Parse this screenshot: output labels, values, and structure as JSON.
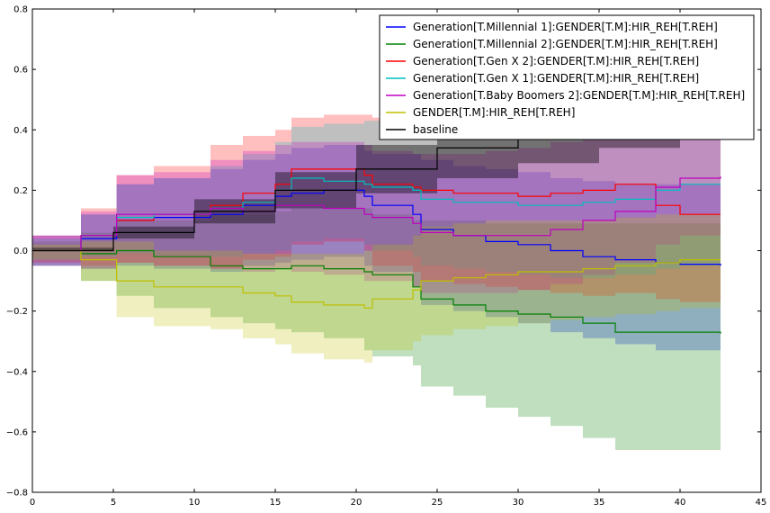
{
  "chart_data": {
    "type": "line",
    "title": "",
    "xlabel": "",
    "ylabel": "",
    "xlim": [
      0,
      45
    ],
    "ylim": [
      -0.8,
      0.8
    ],
    "xticks": [
      0,
      5,
      10,
      15,
      20,
      25,
      30,
      35,
      40,
      45
    ],
    "yticks": [
      -0.8,
      -0.6,
      -0.4,
      -0.2,
      0.0,
      0.2,
      0.4,
      0.6,
      0.8
    ],
    "xtick_labels": [
      "0",
      "5",
      "10",
      "15",
      "20",
      "25",
      "30",
      "35",
      "40",
      "45"
    ],
    "ytick_labels": [
      "−0.8",
      "−0.6",
      "−0.4",
      "−0.2",
      "0.0",
      "0.2",
      "0.4",
      "0.6",
      "0.8"
    ],
    "legend_position": "top-right",
    "grid": false,
    "series": [
      {
        "name": "Generation[T.Millennial 1]:GENDER[T.M]:HIR_REH[T.REH]",
        "color": "#0000ff",
        "x": [
          0,
          3,
          5.2,
          7.5,
          11,
          13,
          15,
          16,
          18,
          20.5,
          21,
          23.5,
          24,
          26,
          28,
          30,
          32,
          34,
          36,
          38.5,
          40,
          42.5
        ],
        "y": [
          0,
          0.04,
          0.1,
          0.11,
          0.12,
          0.15,
          0.18,
          0.19,
          0.2,
          0.18,
          0.15,
          0.12,
          0.07,
          0.05,
          0.03,
          0.02,
          0.0,
          -0.02,
          -0.03,
          -0.04,
          -0.045,
          -0.05
        ],
        "lower": [
          -0.05,
          -0.06,
          -0.05,
          -0.06,
          -0.07,
          -0.05,
          -0.04,
          -0.03,
          -0.02,
          -0.05,
          -0.07,
          -0.12,
          -0.18,
          -0.2,
          -0.22,
          -0.24,
          -0.27,
          -0.29,
          -0.31,
          -0.33,
          -0.33,
          -0.33
        ],
        "upper": [
          0.05,
          0.12,
          0.22,
          0.24,
          0.27,
          0.3,
          0.32,
          0.34,
          0.35,
          0.33,
          0.32,
          0.32,
          0.3,
          0.28,
          0.27,
          0.26,
          0.24,
          0.23,
          0.22,
          0.22,
          0.22,
          0.22
        ]
      },
      {
        "name": "Generation[T.Millennial 2]:GENDER[T.M]:HIR_REH[T.REH]",
        "color": "#008000",
        "x": [
          0,
          3,
          5.2,
          7.5,
          11,
          13,
          15,
          16,
          18,
          20.5,
          21,
          23.5,
          24,
          26,
          28,
          30,
          32,
          34,
          36,
          38.5,
          40,
          42.5
        ],
        "y": [
          0,
          -0.01,
          0.0,
          -0.02,
          -0.05,
          -0.06,
          -0.06,
          -0.05,
          -0.06,
          -0.07,
          -0.08,
          -0.12,
          -0.16,
          -0.18,
          -0.2,
          -0.21,
          -0.22,
          -0.24,
          -0.27,
          -0.27,
          -0.27,
          -0.275
        ],
        "lower": [
          -0.05,
          -0.1,
          -0.15,
          -0.19,
          -0.22,
          -0.24,
          -0.26,
          -0.27,
          -0.29,
          -0.33,
          -0.35,
          -0.38,
          -0.45,
          -0.48,
          -0.52,
          -0.55,
          -0.58,
          -0.62,
          -0.66,
          -0.66,
          -0.66,
          -0.66
        ],
        "upper": [
          0.03,
          0.06,
          0.1,
          0.1,
          0.12,
          0.12,
          0.13,
          0.14,
          0.14,
          0.14,
          0.12,
          0.1,
          0.1,
          0.1,
          0.09,
          0.09,
          0.09,
          0.09,
          0.09,
          0.09,
          0.09,
          0.09
        ]
      },
      {
        "name": "Generation[T.Gen X 2]:GENDER[T.M]:HIR_REH[T.REH]",
        "color": "#ff0000",
        "x": [
          0,
          3,
          5.2,
          7.5,
          11,
          13,
          15,
          16,
          18,
          20.5,
          21,
          23.5,
          24,
          26,
          28,
          30,
          32,
          34,
          36,
          38.5,
          40,
          42.5
        ],
        "y": [
          0,
          0.05,
          0.1,
          0.12,
          0.15,
          0.19,
          0.22,
          0.27,
          0.27,
          0.25,
          0.22,
          0.21,
          0.2,
          0.19,
          0.19,
          0.18,
          0.19,
          0.2,
          0.22,
          0.15,
          0.12,
          0.12
        ],
        "lower": [
          -0.04,
          -0.05,
          -0.04,
          -0.05,
          -0.06,
          -0.03,
          -0.02,
          0.02,
          0.03,
          0.0,
          -0.05,
          -0.07,
          -0.1,
          -0.11,
          -0.12,
          -0.13,
          -0.14,
          -0.15,
          -0.14,
          -0.16,
          -0.17,
          -0.18
        ],
        "upper": [
          0.05,
          0.14,
          0.25,
          0.28,
          0.35,
          0.38,
          0.4,
          0.44,
          0.45,
          0.45,
          0.44,
          0.43,
          0.43,
          0.44,
          0.44,
          0.45,
          0.46,
          0.46,
          0.48,
          0.46,
          0.44,
          0.44
        ]
      },
      {
        "name": "Generation[T.Gen X 1]:GENDER[T.M]:HIR_REH[T.REH]",
        "color": "#00bfbf",
        "x": [
          0,
          3,
          5.2,
          7.5,
          11,
          13,
          15,
          16,
          18,
          20.5,
          21,
          23.5,
          24,
          26,
          28,
          30,
          32,
          34,
          36,
          38.5,
          40,
          42.5
        ],
        "y": [
          0,
          0.05,
          0.11,
          0.12,
          0.14,
          0.16,
          0.2,
          0.24,
          0.23,
          0.22,
          0.21,
          0.2,
          0.17,
          0.16,
          0.16,
          0.15,
          0.15,
          0.16,
          0.17,
          0.2,
          0.22,
          0.22
        ],
        "lower": [
          -0.03,
          -0.02,
          -0.01,
          -0.02,
          -0.02,
          -0.01,
          0.0,
          0.03,
          0.04,
          0.02,
          0.0,
          -0.02,
          -0.05,
          -0.06,
          -0.07,
          -0.08,
          -0.09,
          -0.09,
          -0.08,
          -0.06,
          -0.05,
          -0.05
        ],
        "upper": [
          0.04,
          0.12,
          0.22,
          0.24,
          0.28,
          0.32,
          0.36,
          0.41,
          0.42,
          0.43,
          0.43,
          0.43,
          0.42,
          0.42,
          0.43,
          0.44,
          0.45,
          0.46,
          0.47,
          0.48,
          0.48,
          0.48
        ]
      },
      {
        "name": "Generation[T.Baby Boomers 2]:GENDER[T.M]:HIR_REH[T.REH]",
        "color": "#bf00bf",
        "x": [
          0,
          3,
          5.2,
          7.5,
          11,
          13,
          15,
          16,
          18,
          20.5,
          21,
          23.5,
          24,
          26,
          28,
          30,
          32,
          34,
          36,
          38.5,
          40,
          42.5
        ],
        "y": [
          0,
          0.05,
          0.12,
          0.12,
          0.14,
          0.13,
          0.15,
          0.15,
          0.14,
          0.12,
          0.11,
          0.09,
          0.06,
          0.05,
          0.05,
          0.05,
          0.07,
          0.1,
          0.13,
          0.21,
          0.24,
          0.245
        ],
        "lower": [
          -0.05,
          -0.06,
          -0.04,
          -0.05,
          -0.06,
          -0.07,
          -0.06,
          -0.07,
          -0.08,
          -0.1,
          -0.1,
          -0.12,
          -0.14,
          -0.14,
          -0.14,
          -0.13,
          -0.11,
          -0.08,
          -0.04,
          0.02,
          0.05,
          0.05
        ],
        "upper": [
          0.05,
          0.13,
          0.25,
          0.26,
          0.3,
          0.33,
          0.35,
          0.36,
          0.36,
          0.35,
          0.33,
          0.32,
          0.32,
          0.32,
          0.33,
          0.34,
          0.36,
          0.38,
          0.4,
          0.42,
          0.44,
          0.44
        ]
      },
      {
        "name": "GENDER[T.M]:HIR_REH[T.REH]",
        "color": "#bfbf00",
        "x": [
          0,
          3,
          5.2,
          7.5,
          11,
          13,
          15,
          16,
          18,
          20.5,
          21,
          23.5,
          24,
          26,
          28,
          30,
          32,
          34,
          36,
          38.5,
          40,
          42.5
        ],
        "y": [
          0,
          -0.03,
          -0.1,
          -0.12,
          -0.12,
          -0.14,
          -0.15,
          -0.17,
          -0.18,
          -0.19,
          -0.16,
          -0.13,
          -0.1,
          -0.09,
          -0.08,
          -0.07,
          -0.07,
          -0.06,
          -0.05,
          -0.04,
          -0.03,
          -0.03
        ],
        "lower": [
          -0.03,
          -0.1,
          -0.22,
          -0.25,
          -0.26,
          -0.29,
          -0.31,
          -0.34,
          -0.36,
          -0.37,
          -0.33,
          -0.3,
          -0.28,
          -0.26,
          -0.25,
          -0.24,
          -0.23,
          -0.22,
          -0.21,
          -0.2,
          -0.19,
          -0.19
        ],
        "upper": [
          0.02,
          0.03,
          0.03,
          0.0,
          0.0,
          -0.01,
          -0.01,
          -0.01,
          -0.01,
          0.0,
          0.02,
          0.05,
          0.08,
          0.09,
          0.1,
          0.1,
          0.1,
          0.1,
          0.11,
          0.12,
          0.12,
          0.12
        ]
      },
      {
        "name": "baseline",
        "color": "#000000",
        "x": [
          0,
          5,
          10,
          15,
          20,
          25,
          30,
          35,
          40,
          42.5
        ],
        "y": [
          0,
          0.06,
          0.13,
          0.2,
          0.27,
          0.34,
          0.41,
          0.47,
          0.52,
          0.55
        ],
        "lower": [
          0,
          0.04,
          0.09,
          0.14,
          0.19,
          0.24,
          0.29,
          0.34,
          0.39,
          0.41
        ],
        "upper": [
          0.01,
          0.08,
          0.17,
          0.26,
          0.35,
          0.44,
          0.53,
          0.6,
          0.66,
          0.69
        ]
      }
    ]
  }
}
